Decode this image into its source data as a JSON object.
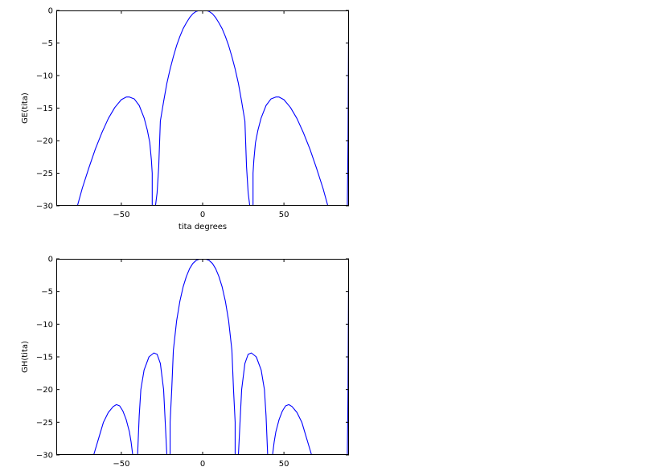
{
  "chart_data": [
    {
      "type": "line",
      "title": "",
      "xlabel": "tita degrees",
      "ylabel": "GE(tita)",
      "xlim": [
        -90,
        90
      ],
      "ylim": [
        -30,
        0
      ],
      "xticks": [
        -50,
        0,
        50
      ],
      "xtick_labels": [
        "−50",
        "0",
        "50"
      ],
      "yticks": [
        0,
        -5,
        -10,
        -15,
        -20,
        -25,
        -30
      ],
      "ytick_labels": [
        "0",
        "−5",
        "−10",
        "−15",
        "−20",
        "−25",
        "−30"
      ],
      "grid": false,
      "legend": "none",
      "series": [
        {
          "color": "#0000ff",
          "x": [
            -90,
            -77,
            -74,
            -70,
            -66,
            -62,
            -58,
            -54,
            -50,
            -47,
            -45,
            -42,
            -39,
            -36,
            -34,
            -32.5,
            -31.5,
            -31,
            -31,
            -29,
            -28,
            -27,
            -26,
            -25,
            -24,
            -22,
            -20,
            -18,
            -16,
            -14,
            -12,
            -10,
            -8,
            -6,
            -4,
            -2,
            0,
            2,
            4,
            6,
            8,
            10,
            12,
            14,
            16,
            18,
            20,
            22,
            24,
            25,
            26,
            27,
            28,
            29,
            31,
            31,
            31.5,
            32.5,
            34,
            36,
            39,
            42,
            45,
            47,
            50,
            54,
            58,
            62,
            66,
            70,
            74,
            77,
            89,
            89.4,
            89.7,
            90
          ],
          "y": [
            -30,
            -30,
            -27.3,
            -24.2,
            -21.3,
            -18.8,
            -16.6,
            -14.9,
            -13.7,
            -13.3,
            -13.3,
            -13.6,
            -14.6,
            -16.5,
            -18.4,
            -20.3,
            -23,
            -25,
            -30,
            -30,
            -28,
            -24,
            -17,
            -15.5,
            -14,
            -11.2,
            -9,
            -7.1,
            -5.4,
            -4,
            -2.8,
            -1.9,
            -1.1,
            -0.5,
            -0.15,
            0,
            0,
            0,
            -0.15,
            -0.5,
            -1.1,
            -1.9,
            -2.8,
            -4,
            -5.4,
            -7.1,
            -9,
            -11.2,
            -14,
            -15.5,
            -17,
            -24,
            -28,
            -30,
            -30,
            -25,
            -23,
            -20.3,
            -18.4,
            -16.5,
            -14.6,
            -13.6,
            -13.3,
            -13.3,
            -13.7,
            -14.9,
            -16.6,
            -18.8,
            -21.3,
            -24.2,
            -27.3,
            -30,
            -30,
            -20,
            -5,
            0
          ]
        }
      ]
    },
    {
      "type": "line",
      "title": "",
      "xlabel": "",
      "ylabel": "GH(tita)",
      "xlim": [
        -90,
        90
      ],
      "ylim": [
        -30,
        0
      ],
      "xticks": [
        -50,
        0,
        50
      ],
      "xtick_labels": [
        "−50",
        "0",
        "50"
      ],
      "yticks": [
        0,
        -5,
        -10,
        -15,
        -20,
        -25,
        -30
      ],
      "ytick_labels": [
        "0",
        "−5",
        "−10",
        "−15",
        "−20",
        "−25",
        "−30"
      ],
      "grid": false,
      "legend": "none",
      "series": [
        {
          "color": "#0000ff",
          "x": [
            -90,
            -67,
            -64,
            -61,
            -58,
            -55,
            -53,
            -51,
            -49,
            -47,
            -45,
            -44,
            -43,
            -42,
            -40,
            -39,
            -38,
            -36,
            -33,
            -30,
            -28,
            -26,
            -24,
            -22,
            -21,
            -20,
            -20,
            -19,
            -18,
            -16,
            -14,
            -12,
            -10,
            -8,
            -6,
            -4,
            -2,
            -1,
            0,
            1,
            2,
            4,
            6,
            8,
            10,
            12,
            14,
            16,
            18,
            19,
            20,
            20,
            21,
            22,
            24,
            26,
            28,
            30,
            33,
            36,
            38,
            39,
            40,
            42,
            43,
            44,
            45,
            47,
            49,
            51,
            53,
            55,
            58,
            61,
            64,
            67,
            89,
            89.4,
            89.7,
            90
          ],
          "y": [
            -30,
            -30,
            -27.5,
            -25,
            -23.5,
            -22.6,
            -22.3,
            -22.5,
            -23.3,
            -24.6,
            -26.5,
            -28,
            -30,
            -30,
            -30,
            -24,
            -20,
            -17,
            -15,
            -14.4,
            -14.6,
            -16,
            -20,
            -30,
            -30,
            -30,
            -25,
            -20,
            -14,
            -9.5,
            -6.5,
            -4.3,
            -2.7,
            -1.5,
            -0.7,
            -0.25,
            -0.05,
            0,
            0,
            0,
            -0.05,
            -0.25,
            -0.7,
            -1.5,
            -2.7,
            -4.3,
            -6.5,
            -9.5,
            -14,
            -20,
            -25,
            -30,
            -30,
            -30,
            -20,
            -16,
            -14.6,
            -14.4,
            -15,
            -17,
            -20,
            -24,
            -30,
            -30,
            -30,
            -28,
            -26.5,
            -24.6,
            -23.3,
            -22.5,
            -22.3,
            -22.6,
            -23.5,
            -25,
            -27.5,
            -30,
            -30,
            -20,
            -5,
            0
          ]
        }
      ]
    }
  ]
}
